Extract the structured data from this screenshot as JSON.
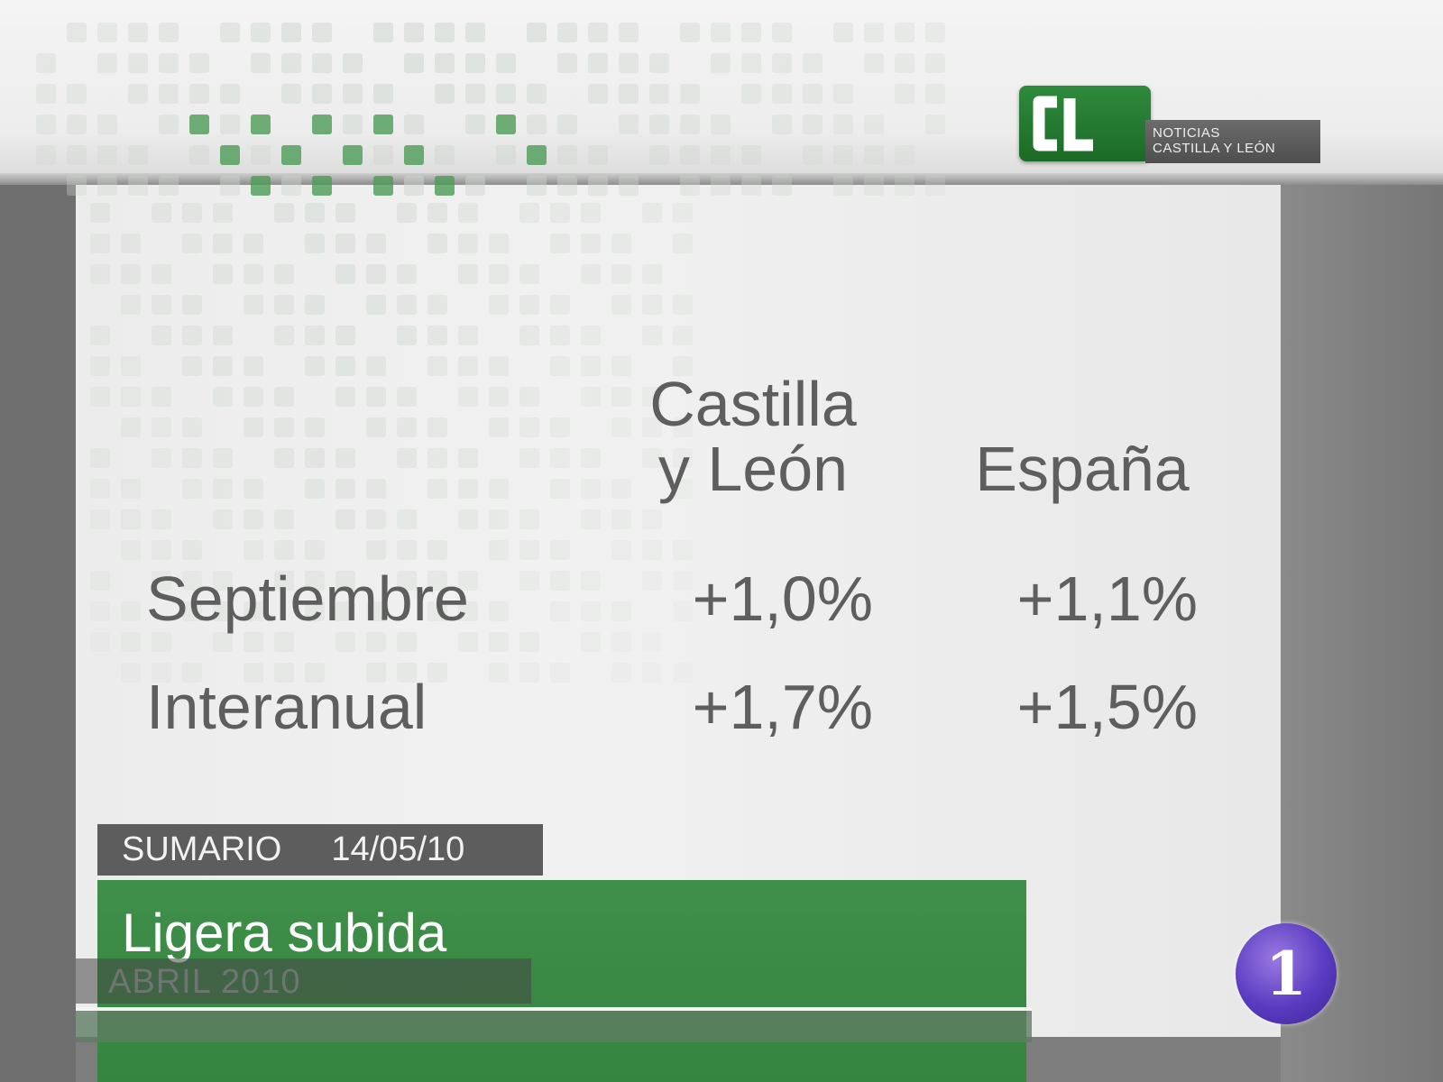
{
  "channel": {
    "logo_letters": "CL",
    "logo_line1": "NOTICIAS",
    "logo_line2": "CASTILLA Y LEÓN",
    "network_number": "1"
  },
  "table": {
    "col_headers": [
      {
        "line1": "Castilla",
        "line2": "y León"
      },
      {
        "line1": "",
        "line2": "España"
      }
    ],
    "rows": [
      {
        "label": "Septiembre",
        "values": [
          "+1,0%",
          "+1,1%"
        ]
      },
      {
        "label": "Interanual",
        "values": [
          "+1,7%",
          "+1,5%"
        ]
      }
    ]
  },
  "lower_third": {
    "section": "SUMARIO",
    "date": "14/05/10",
    "headline": "Ligera subida",
    "subline": "ABRIL 2010"
  },
  "colors": {
    "brand_green": "#3f8f4a",
    "text_gray": "#5e5e5e",
    "tve_purple": "#5a3bc2"
  }
}
